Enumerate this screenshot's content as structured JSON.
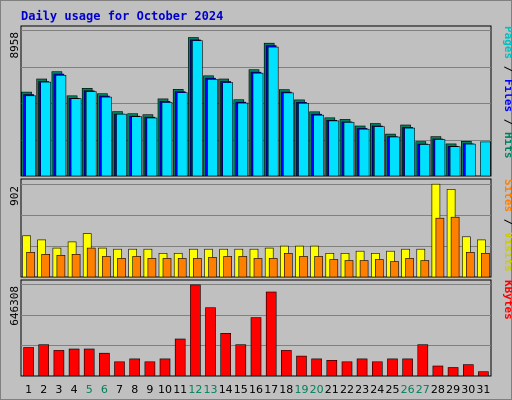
{
  "chart_data": {
    "type": "bar",
    "title": "Daily usage for October 2024",
    "categories": [
      "1",
      "2",
      "3",
      "4",
      "5",
      "6",
      "7",
      "8",
      "9",
      "10",
      "11",
      "12",
      "13",
      "14",
      "15",
      "16",
      "17",
      "18",
      "19",
      "20",
      "21",
      "22",
      "23",
      "24",
      "25",
      "26",
      "27",
      "28",
      "29",
      "30",
      "31"
    ],
    "weekend_categories": [
      "5",
      "6",
      "12",
      "13",
      "19",
      "20",
      "26",
      "27"
    ],
    "panels": [
      {
        "id": "pages-files-hits",
        "ymax_label": "8958",
        "ymax": 8958,
        "grid": true,
        "legend_text": [
          "Pages",
          "Files",
          "Hits"
        ],
        "series": [
          {
            "name": "Hits",
            "color": "#00805c",
            "values": [
              5150,
              5950,
              6400,
              4920,
              5380,
              5050,
              3950,
              3820,
              3760,
              4730,
              5320,
              8500,
              6150,
              5950,
              4680,
              6520,
              8150,
              5300,
              4670,
              3940,
              3570,
              3470,
              3070,
              3220,
              2570,
              3130,
              2110,
              2420,
              1970,
              2130,
              0
            ]
          },
          {
            "name": "Files",
            "color": "#0000ff",
            "values": [
              5000,
              5800,
              6250,
              4770,
              5230,
              4900,
              3800,
              3670,
              3610,
              4580,
              5170,
              8350,
              6000,
              5800,
              4530,
              6370,
              8000,
              5150,
              4520,
              3790,
              3420,
              3320,
              2920,
              3070,
              2420,
              2980,
              1960,
              2270,
              1820,
              1980,
              0
            ]
          },
          {
            "name": "Pages",
            "color": "#00e0ff",
            "values": [
              4920,
              5760,
              6180,
              4740,
              5180,
              4840,
              3790,
              3640,
              3560,
              4510,
              5110,
              8300,
              5930,
              5730,
              4470,
              6310,
              7910,
              5100,
              4460,
              3730,
              3380,
              3290,
              2870,
              3030,
              2390,
              2940,
              1930,
              2240,
              1800,
              1960,
              2090
            ]
          }
        ]
      },
      {
        "id": "visits-sites",
        "ymax_label": "902",
        "ymax": 902,
        "grid": true,
        "legend_text": [
          "Sites",
          "Visits"
        ],
        "series": [
          {
            "name": "Visits",
            "color": "#ffff00",
            "values": [
              400,
              360,
              280,
              340,
              420,
              280,
              270,
              270,
              270,
              230,
              230,
              270,
              270,
              270,
              270,
              270,
              280,
              300,
              300,
              300,
              230,
              230,
              250,
              230,
              250,
              270,
              270,
              900,
              850,
              390,
              360
            ]
          },
          {
            "name": "Sites",
            "color": "#ff8000",
            "values": [
              240,
              220,
              210,
              220,
              280,
              200,
              180,
              200,
              180,
              180,
              180,
              180,
              190,
              200,
              200,
              180,
              180,
              230,
              200,
              200,
              170,
              160,
              160,
              170,
              150,
              180,
              160,
              570,
              580,
              240,
              230
            ]
          }
        ]
      },
      {
        "id": "kbytes",
        "ymax_label": "646308",
        "ymax": 646308,
        "grid": true,
        "legend_text": [
          "KBytes"
        ],
        "series": [
          {
            "name": "KBytes",
            "color": "#ff0000",
            "values": [
              200000,
              220000,
              180000,
              190000,
              190000,
              160000,
              100000,
              120000,
              100000,
              120000,
              260000,
              640000,
              480000,
              300000,
              220000,
              410000,
              590000,
              180000,
              140000,
              120000,
              110000,
              100000,
              120000,
              100000,
              120000,
              120000,
              220000,
              70000,
              60000,
              80000,
              30000
            ]
          }
        ]
      }
    ]
  }
}
